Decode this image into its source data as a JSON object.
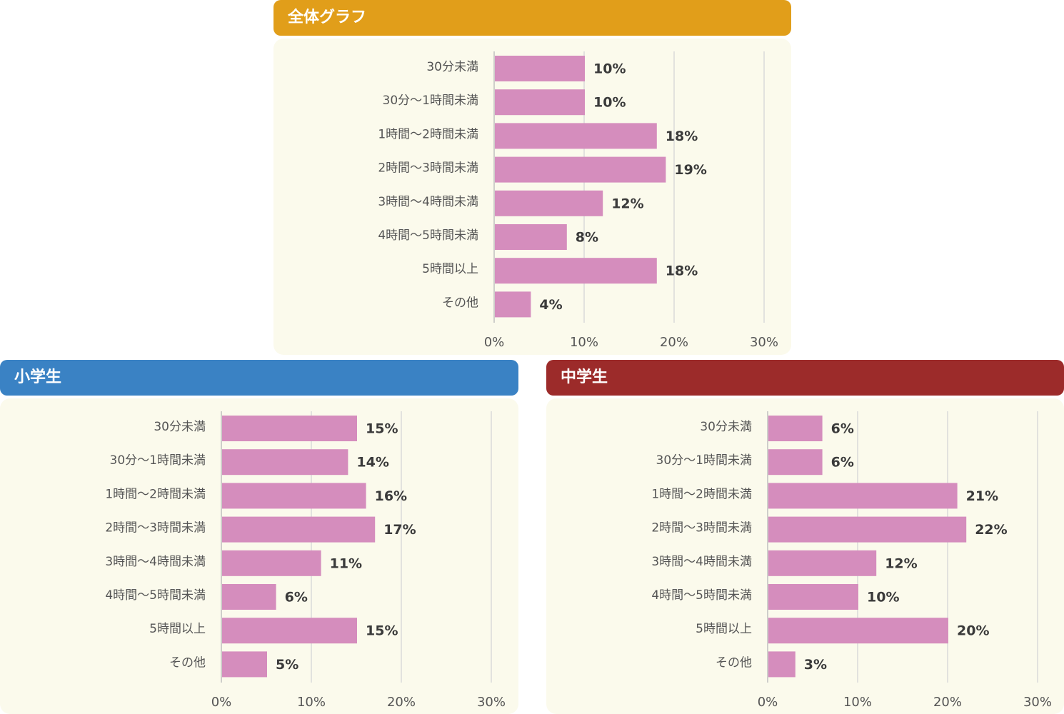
{
  "colors": {
    "overall_header": "#e19e1a",
    "elementary_header": "#3a82c4",
    "junior_high_header": "#9c2b2a",
    "bar": "#d58dbd",
    "panel_background": "#fbfaec",
    "gridline": "#d9d9d9"
  },
  "chart_data": [
    {
      "type": "bar",
      "orientation": "horizontal",
      "title": "全体グラフ",
      "categories": [
        "30分未満",
        "30分〜1時間未満",
        "1時間〜2時間未満",
        "2時間〜3時間未満",
        "3時間〜4時間未満",
        "4時間〜5時間未満",
        "5時間以上",
        "その他"
      ],
      "values": [
        10,
        10,
        18,
        19,
        12,
        8,
        18,
        4
      ],
      "value_labels": [
        "10%",
        "10%",
        "18%",
        "19%",
        "12%",
        "8%",
        "18%",
        "4%"
      ],
      "xlim": [
        0,
        30
      ],
      "xticks": [
        "0%",
        "10%",
        "20%",
        "30%"
      ],
      "grid": true
    },
    {
      "type": "bar",
      "orientation": "horizontal",
      "title": "小学生",
      "categories": [
        "30分未満",
        "30分〜1時間未満",
        "1時間〜2時間未満",
        "2時間〜3時間未満",
        "3時間〜4時間未満",
        "4時間〜5時間未満",
        "5時間以上",
        "その他"
      ],
      "values": [
        15,
        14,
        16,
        17,
        11,
        6,
        15,
        5
      ],
      "value_labels": [
        "15%",
        "14%",
        "16%",
        "17%",
        "11%",
        "6%",
        "15%",
        "5%"
      ],
      "xlim": [
        0,
        30
      ],
      "xticks": [
        "0%",
        "10%",
        "20%",
        "30%"
      ],
      "grid": true
    },
    {
      "type": "bar",
      "orientation": "horizontal",
      "title": "中学生",
      "categories": [
        "30分未満",
        "30分〜1時間未満",
        "1時間〜2時間未満",
        "2時間〜3時間未満",
        "3時間〜4時間未満",
        "4時間〜5時間未満",
        "5時間以上",
        "その他"
      ],
      "values": [
        6,
        6,
        21,
        22,
        12,
        10,
        20,
        3
      ],
      "value_labels": [
        "6%",
        "6%",
        "21%",
        "22%",
        "12%",
        "10%",
        "20%",
        "3%"
      ],
      "xlim": [
        0,
        30
      ],
      "xticks": [
        "0%",
        "10%",
        "20%",
        "30%"
      ],
      "grid": true
    }
  ]
}
